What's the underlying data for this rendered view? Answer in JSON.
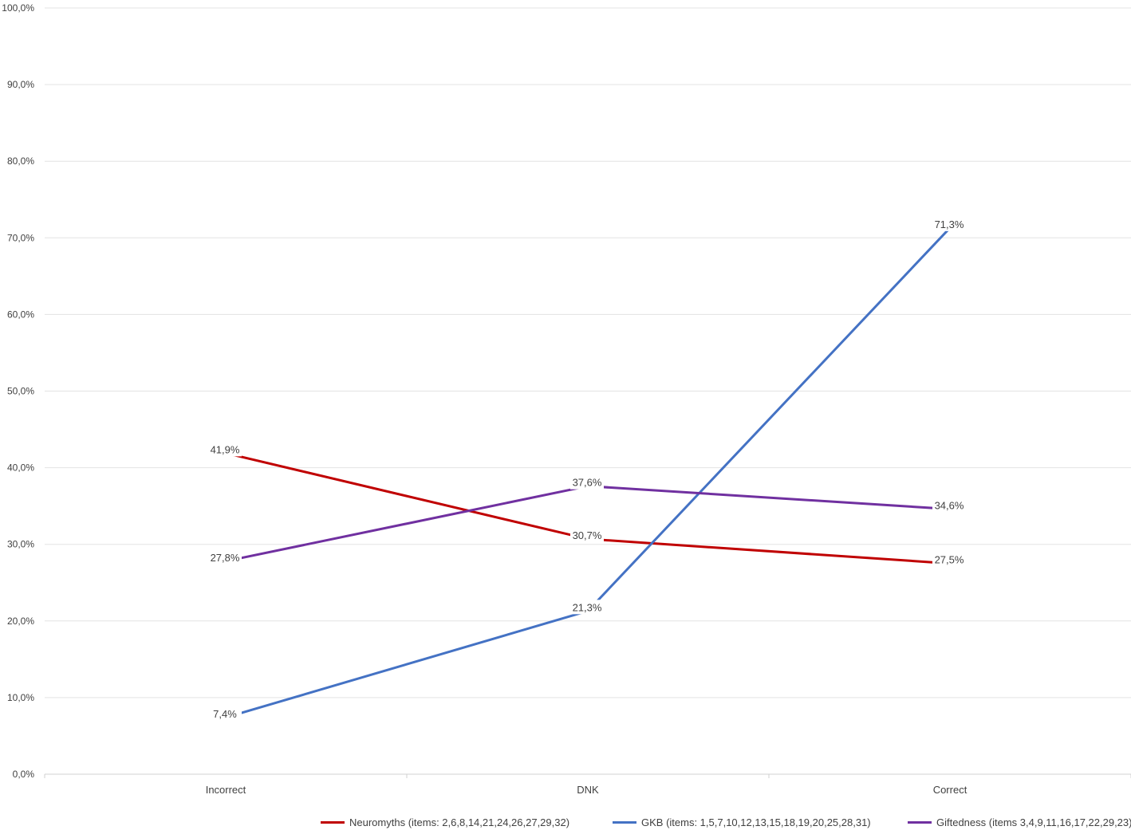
{
  "chart_data": {
    "type": "line",
    "categories": [
      "Incorrect",
      "DNK",
      "Correct"
    ],
    "ylim": [
      0,
      100
    ],
    "yticks": [
      "0,0%",
      "10,0%",
      "20,0%",
      "30,0%",
      "40,0%",
      "50,0%",
      "60,0%",
      "70,0%",
      "80,0%",
      "90,0%",
      "100,0%"
    ],
    "grid": true,
    "legend_position": "bottom",
    "series": [
      {
        "name": "Neuromyths (items: 2,6,8,14,21,24,26,27,29,32)",
        "color": "#C00000",
        "values": [
          41.9,
          30.7,
          27.5
        ],
        "labels": [
          "41,9%",
          "30,7%",
          "27,5%"
        ]
      },
      {
        "name": "GKB (items: 1,5,7,10,12,13,15,18,19,20,25,28,31)",
        "color": "#4472C4",
        "values": [
          7.4,
          21.3,
          71.3
        ],
        "labels": [
          "7,4%",
          "21,3%",
          "71,3%"
        ]
      },
      {
        "name": "Giftedness (items 3,4,9,11,16,17,22,29,23)",
        "color": "#7030A0",
        "values": [
          27.8,
          37.6,
          34.6
        ],
        "labels": [
          "27,8%",
          "37,6%",
          "34,6%"
        ]
      }
    ]
  }
}
